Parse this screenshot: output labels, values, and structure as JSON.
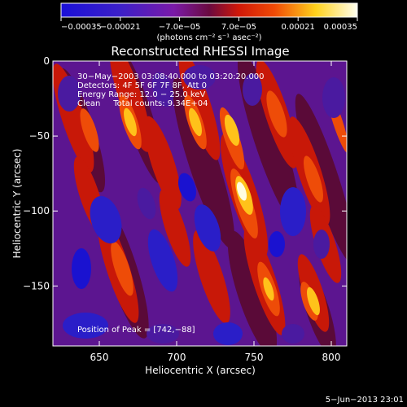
{
  "chart_data": {
    "type": "heatmap",
    "title": "Reconstructed RHESSI Image",
    "xlabel": "Heliocentric X (arcsec)",
    "ylabel": "Heliocentric Y (arcsec)",
    "xlim": [
      620,
      810
    ],
    "ylim": [
      -190,
      0
    ],
    "x_ticks": [
      "650",
      "700",
      "750",
      "800"
    ],
    "x_tick_values": [
      650,
      700,
      750,
      800
    ],
    "y_ticks": [
      "0",
      "−50",
      "−100",
      "−150"
    ],
    "y_tick_values": [
      0,
      -50,
      -100,
      -150
    ],
    "colorbar": {
      "ticks": [
        "−0.00035",
        "−0.00021",
        "−7.0e−05",
        "7.0e−05",
        "0.00021",
        "0.00035"
      ],
      "range": [
        -0.00035,
        0.00035
      ],
      "units_label": "(photons cm⁻² s⁻¹ asec⁻²)"
    },
    "annotations": [
      "30−May−2003 03:08:40.000 to 03:20:20.000",
      "Detectors: 4F 5F 6F 7F 8F, Att 0",
      "Energy Range: 12.0 − 25.0 keV",
      "Clean     Total counts: 9.34E+04"
    ],
    "peak_label": "Position of Peak = [742,−88]",
    "peak": {
      "x": 742,
      "y": -88
    },
    "date_stamp": "5−Jun−2013 23:01"
  }
}
